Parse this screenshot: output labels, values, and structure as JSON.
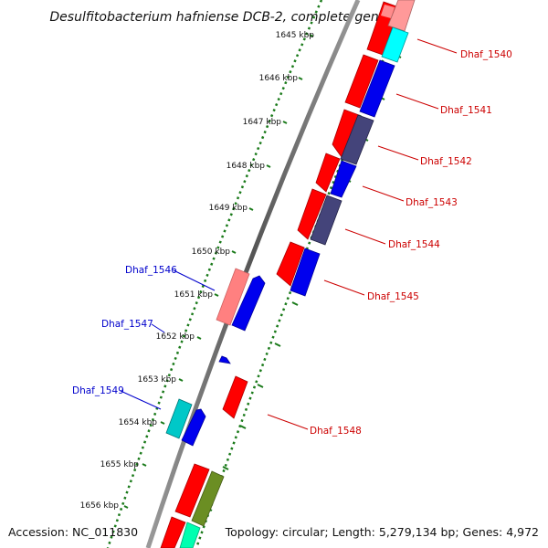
{
  "title": "Desulfitobacterium hafniense DCB-2, complete genome",
  "accession": "Accession: NC_011830",
  "topology": "Topology: circular; Length: 5,279,134 bp; Genes: 4,972",
  "ticks": [
    "1645 kbp",
    "1646 kbp",
    "1647 kbp",
    "1648 kbp",
    "1649 kbp",
    "1650 kbp",
    "1651 kbp",
    "1652 kbp",
    "1653 kbp",
    "1654 kbp",
    "1655 kbp",
    "1656 kbp"
  ],
  "labels": {
    "right": [
      "Dhaf_1540",
      "Dhaf_1541",
      "Dhaf_1542",
      "Dhaf_1543",
      "Dhaf_1544",
      "Dhaf_1545",
      "Dhaf_1548"
    ],
    "left": [
      "Dhaf_1546",
      "Dhaf_1547",
      "Dhaf_1549"
    ]
  },
  "colors": {
    "red": "#ff0000",
    "blue": "#0000ee",
    "navy": "#44447a",
    "cyan": "#00ffff",
    "pink": "#ff8080",
    "teal": "#00c8c8",
    "olive": "#6b8e23",
    "mint": "#00ffb0",
    "tick_green": "#1a7a1a",
    "right_label": "#cc0000",
    "left_label": "#0000cc",
    "backbone": "#8a8a8a"
  }
}
